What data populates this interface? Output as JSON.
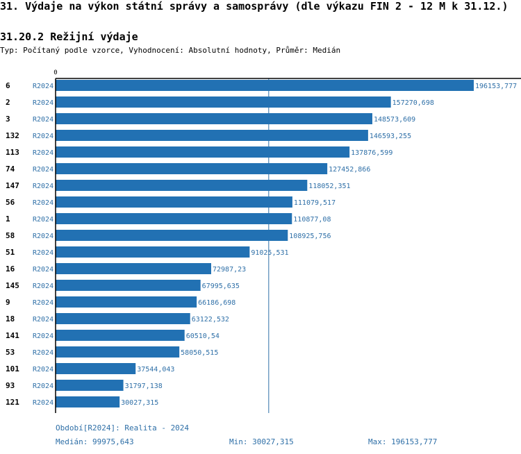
{
  "header": {
    "title": "31. Výdaje na výkon státní správy a samosprávy (dle výkazu FIN 2 - 12 M k 31.12.)",
    "subtitle": "31.20.2 Režijní výdaje",
    "description": "Typ: Počítaný podle vzorce, Vyhodnocení: Absolutní hodnoty, Průměr: Medián"
  },
  "colors": {
    "bar": "#2271b3",
    "value_text": "#2e6fa7",
    "median_line": "#2e6fa7",
    "axis": "#000000"
  },
  "chart_data": {
    "type": "bar",
    "orientation": "horizontal",
    "axis_zero_label": "0",
    "xlim": [
      0,
      196153.777
    ],
    "median": 99975.643,
    "categories": [
      "6",
      "2",
      "3",
      "132",
      "113",
      "74",
      "147",
      "56",
      "1",
      "58",
      "51",
      "16",
      "145",
      "9",
      "18",
      "141",
      "53",
      "101",
      "93",
      "121"
    ],
    "period_labels": [
      "R2024",
      "R2024",
      "R2024",
      "R2024",
      "R2024",
      "R2024",
      "R2024",
      "R2024",
      "R2024",
      "R2024",
      "R2024",
      "R2024",
      "R2024",
      "R2024",
      "R2024",
      "R2024",
      "R2024",
      "R2024",
      "R2024",
      "R2024"
    ],
    "values": [
      196153.777,
      157270.698,
      148573.609,
      146593.255,
      137876.599,
      127452.866,
      118052.351,
      111079.517,
      110877.08,
      108925.756,
      91025.531,
      72987.23,
      67995.635,
      66186.698,
      63122.532,
      60510.54,
      58050.515,
      37544.043,
      31797.138,
      30027.315
    ],
    "value_labels": [
      "196153,777",
      "157270,698",
      "148573,609",
      "146593,255",
      "137876,599",
      "127452,866",
      "118052,351",
      "111079,517",
      "110877,08",
      "108925,756",
      "91025,531",
      "72987,23",
      "67995,635",
      "66186,698",
      "63122,532",
      "60510,54",
      "58050,515",
      "37544,043",
      "31797,138",
      "30027,315"
    ]
  },
  "footer": {
    "period": "Období[R2024]: Realita - 2024",
    "median": "Medián: 99975,643",
    "min": "Min: 30027,315",
    "max": "Max: 196153,777"
  }
}
